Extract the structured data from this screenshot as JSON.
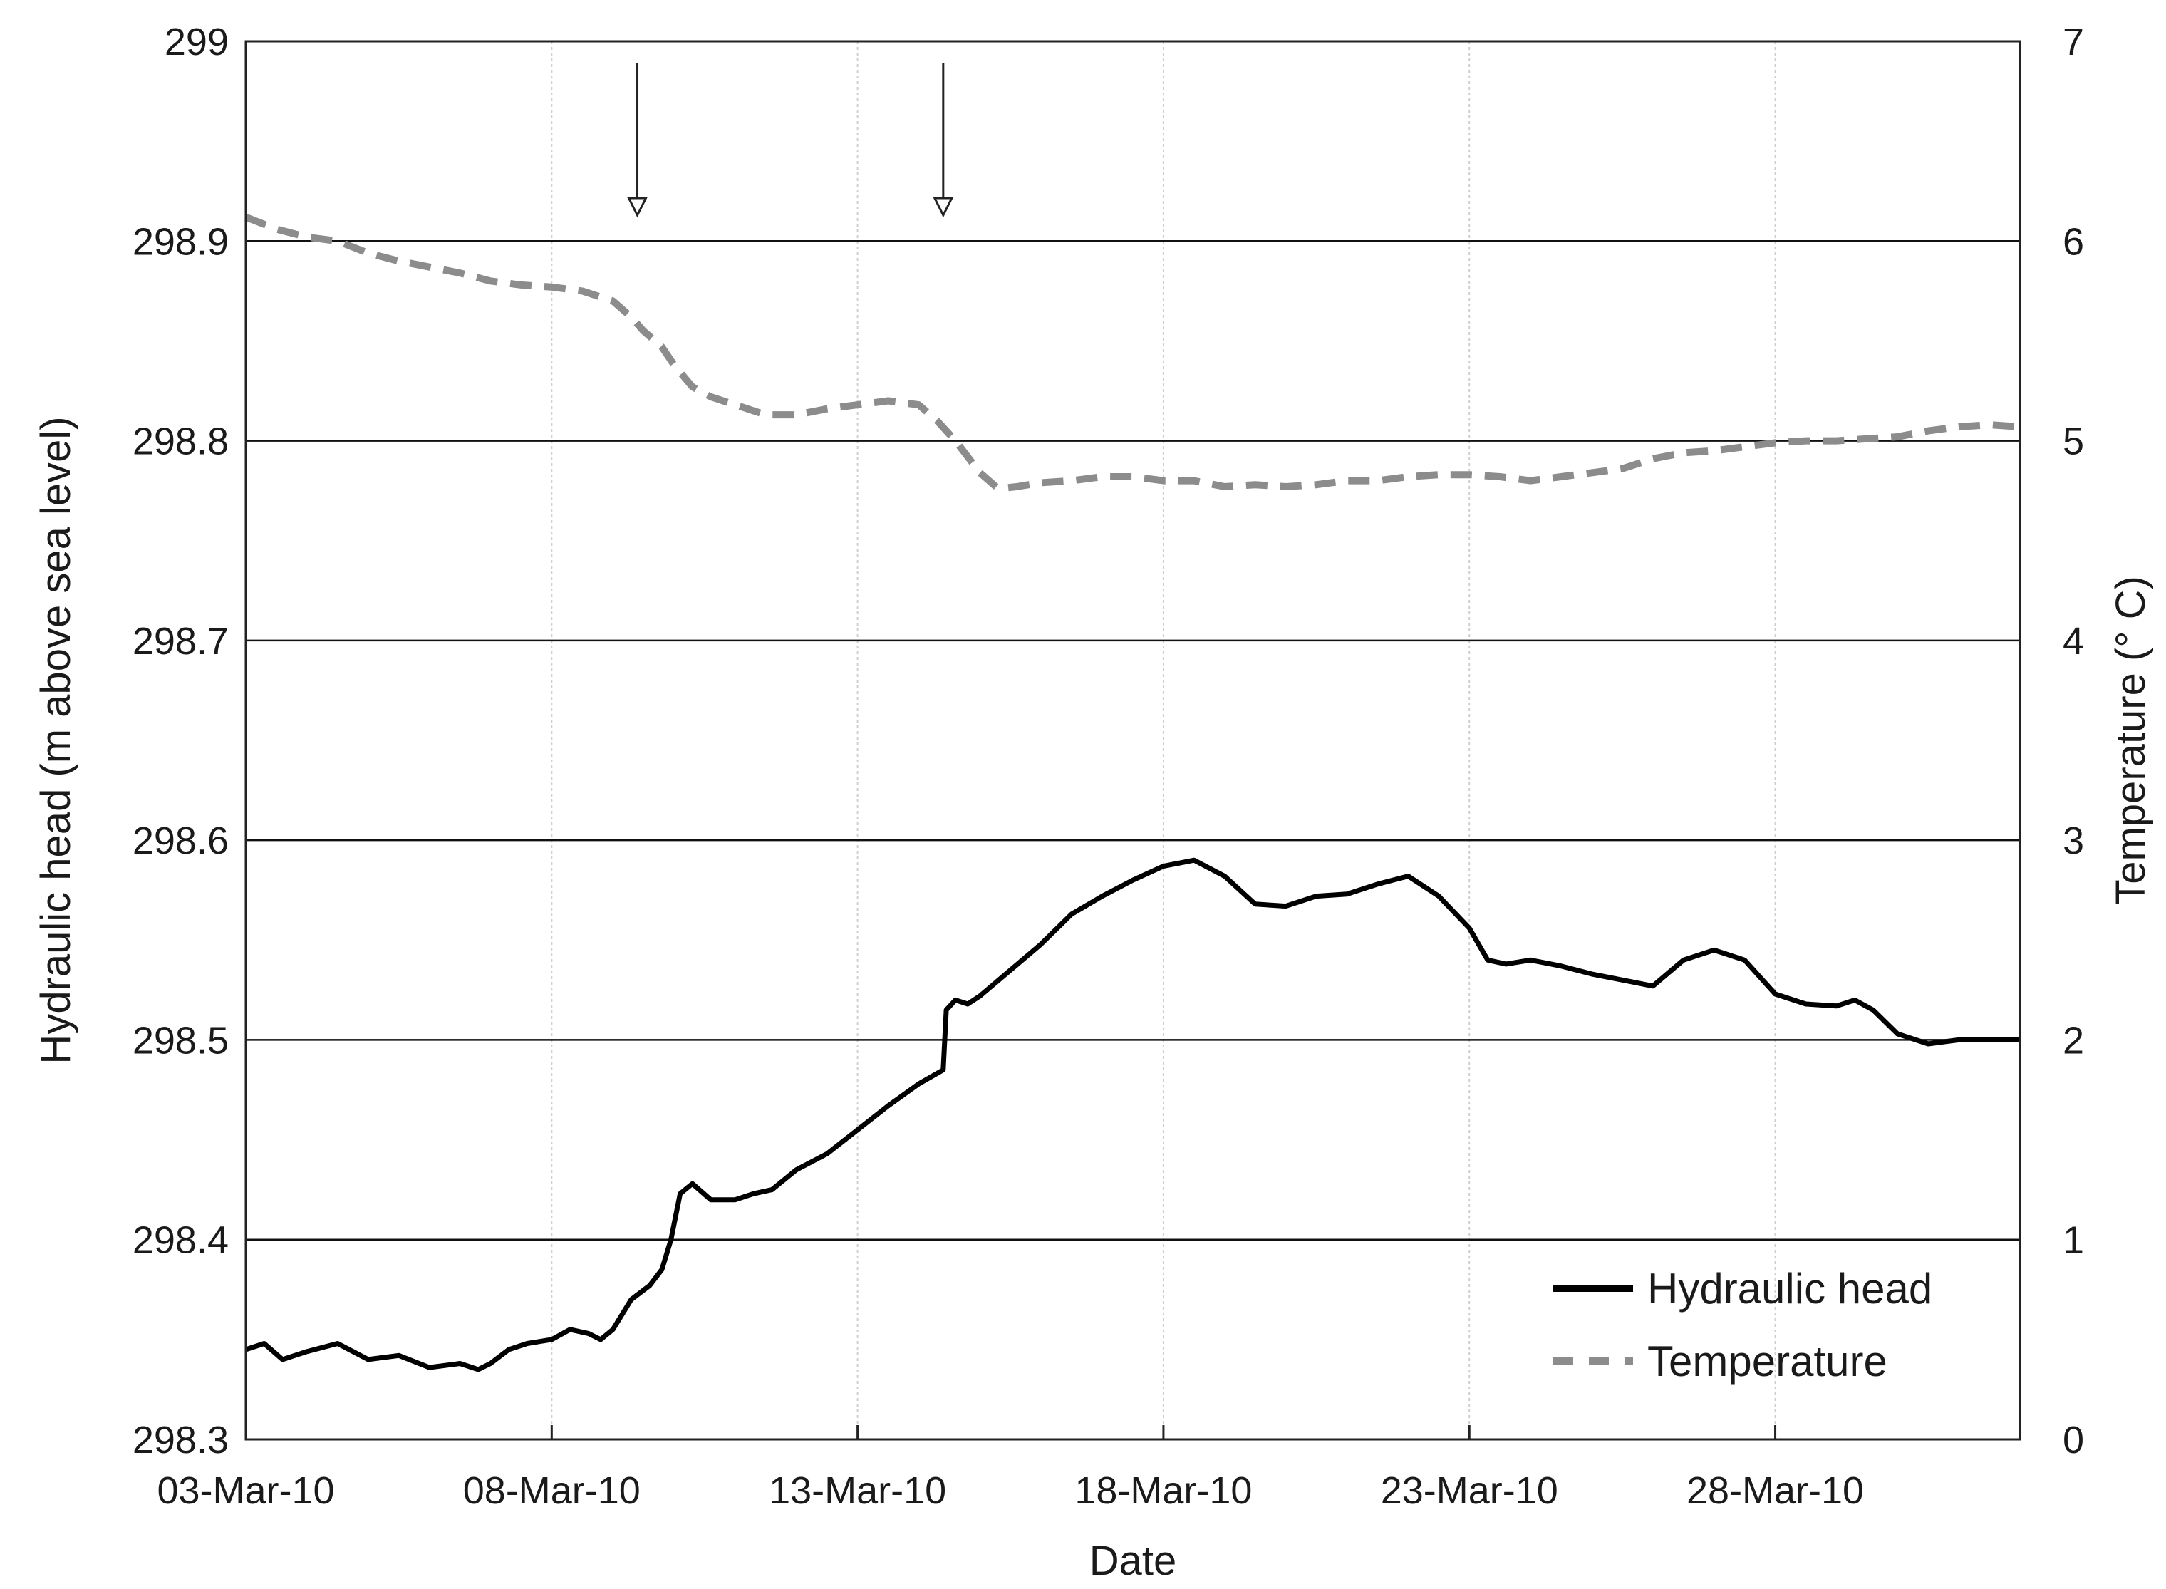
{
  "chart_data": {
    "type": "line",
    "title": "",
    "xlabel": "Date",
    "ylabel": "Hydraulic head (m above sea level)",
    "ylabel_right": "Temperature (° C)",
    "xlim": [
      0,
      29
    ],
    "x_tick_labels": [
      {
        "x": 0,
        "label": "03-Mar-10"
      },
      {
        "x": 5,
        "label": "08-Mar-10"
      },
      {
        "x": 10,
        "label": "13-Mar-10"
      },
      {
        "x": 15,
        "label": "18-Mar-10"
      },
      {
        "x": 20,
        "label": "23-Mar-10"
      },
      {
        "x": 25,
        "label": "28-Mar-10"
      }
    ],
    "ylim": [
      298.3,
      299.0
    ],
    "y_ticks": [
      298.3,
      298.4,
      298.5,
      298.6,
      298.7,
      298.8,
      298.9,
      299
    ],
    "y_tick_labels": [
      "298.3",
      "298.4",
      "298.5",
      "298.6",
      "298.7",
      "298.8",
      "298.9",
      "299"
    ],
    "ylim_right": [
      0,
      7
    ],
    "y_ticks_right": [
      0,
      1,
      2,
      3,
      4,
      5,
      6,
      7
    ],
    "y_tick_labels_right": [
      "0",
      "1",
      "2",
      "3",
      "4",
      "5",
      "6",
      "7"
    ],
    "grid": {
      "horizontal": true,
      "vertical": true
    },
    "legend_position": "bottom-right",
    "arrows_at_x": [
      6.4,
      11.4
    ],
    "series": [
      {
        "name": "Hydraulic head",
        "axis": "left",
        "style": "solid",
        "color": "#000000",
        "x": [
          0,
          0.3,
          0.6,
          1.0,
          1.5,
          2.0,
          2.5,
          3.0,
          3.5,
          3.8,
          4.0,
          4.3,
          4.6,
          5.0,
          5.3,
          5.6,
          5.8,
          6.0,
          6.3,
          6.6,
          6.8,
          6.95,
          7.1,
          7.3,
          7.6,
          8.0,
          8.3,
          8.6,
          9.0,
          9.5,
          10.0,
          10.5,
          11.0,
          11.4,
          11.45,
          11.6,
          11.8,
          12.0,
          12.5,
          13.0,
          13.5,
          14.0,
          14.5,
          15.0,
          15.5,
          16.0,
          16.5,
          17.0,
          17.5,
          18.0,
          18.5,
          19.0,
          19.5,
          20.0,
          20.3,
          20.6,
          21.0,
          21.5,
          22.0,
          22.5,
          23.0,
          23.5,
          24.0,
          24.5,
          25.0,
          25.5,
          26.0,
          26.3,
          26.6,
          27.0,
          27.5,
          28.0,
          28.3,
          28.6,
          29.0
        ],
        "values": [
          298.345,
          298.348,
          298.34,
          298.344,
          298.348,
          298.34,
          298.342,
          298.336,
          298.338,
          298.335,
          298.338,
          298.345,
          298.348,
          298.35,
          298.355,
          298.353,
          298.35,
          298.355,
          298.37,
          298.377,
          298.385,
          298.4,
          298.423,
          298.428,
          298.42,
          298.42,
          298.423,
          298.425,
          298.435,
          298.443,
          298.455,
          298.467,
          298.478,
          298.485,
          298.515,
          298.52,
          298.518,
          298.522,
          298.535,
          298.548,
          298.563,
          298.572,
          298.58,
          298.587,
          298.59,
          298.582,
          298.568,
          298.567,
          298.572,
          298.573,
          298.578,
          298.582,
          298.572,
          298.556,
          298.54,
          298.538,
          298.54,
          298.537,
          298.533,
          298.53,
          298.527,
          298.54,
          298.545,
          298.54,
          298.523,
          298.518,
          298.517,
          298.52,
          298.515,
          298.503,
          298.498,
          298.5,
          298.5,
          298.5,
          298.5
        ]
      },
      {
        "name": "Temperature",
        "axis": "right",
        "style": "dashed",
        "color": "#8c8c8c",
        "x": [
          0,
          0.5,
          1.0,
          1.5,
          2.0,
          2.5,
          3.0,
          3.5,
          4.0,
          4.5,
          5.0,
          5.5,
          6.0,
          6.3,
          6.5,
          6.8,
          7.0,
          7.3,
          7.6,
          8.0,
          8.5,
          9.0,
          9.5,
          10.0,
          10.5,
          11.0,
          11.3,
          11.6,
          11.8,
          12.0,
          12.3,
          12.6,
          13.0,
          13.5,
          14.0,
          14.5,
          15.0,
          15.5,
          16.0,
          16.5,
          17.0,
          17.5,
          18.0,
          18.5,
          19.0,
          19.5,
          20.0,
          20.5,
          21.0,
          21.5,
          22.0,
          22.5,
          23.0,
          23.5,
          24.0,
          24.5,
          25.0,
          25.5,
          26.0,
          26.5,
          27.0,
          27.5,
          28.0,
          28.5,
          29.0
        ],
        "values": [
          6.12,
          6.06,
          6.02,
          6.0,
          5.94,
          5.9,
          5.87,
          5.84,
          5.8,
          5.78,
          5.77,
          5.75,
          5.7,
          5.62,
          5.55,
          5.47,
          5.38,
          5.27,
          5.22,
          5.18,
          5.13,
          5.13,
          5.16,
          5.18,
          5.2,
          5.18,
          5.1,
          5.0,
          4.92,
          4.84,
          4.76,
          4.77,
          4.79,
          4.8,
          4.82,
          4.82,
          4.8,
          4.8,
          4.77,
          4.78,
          4.77,
          4.78,
          4.8,
          4.8,
          4.82,
          4.83,
          4.83,
          4.82,
          4.8,
          4.82,
          4.84,
          4.86,
          4.91,
          4.94,
          4.95,
          4.97,
          4.99,
          5.0,
          5.0,
          5.01,
          5.02,
          5.05,
          5.07,
          5.08,
          5.07
        ]
      }
    ]
  }
}
